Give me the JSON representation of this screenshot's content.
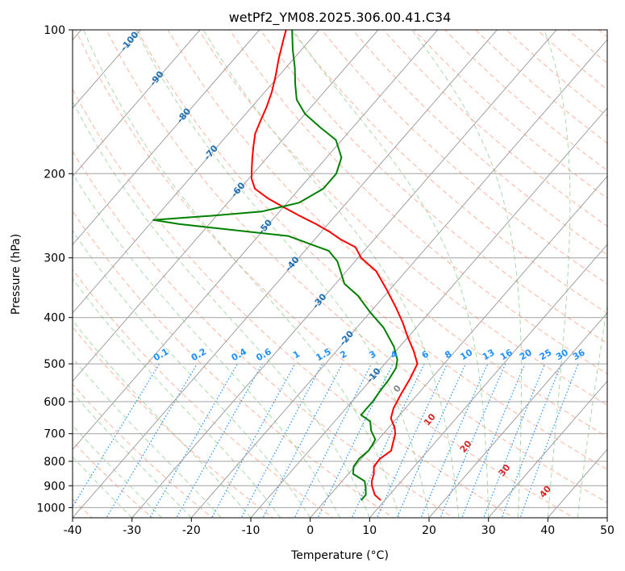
{
  "chart_data": {
    "type": "line",
    "subtype": "skew-t log-p",
    "title": "wetPf2_YM08.2025.306.00.41.C34",
    "xlabel": "Temperature (°C)",
    "ylabel": "Pressure (hPa)",
    "xlim": [
      -40,
      50
    ],
    "ylim": [
      1050,
      100
    ],
    "x_ticks": [
      -40,
      -30,
      -20,
      -10,
      0,
      10,
      20,
      30,
      40,
      50
    ],
    "y_ticks": [
      1000,
      900,
      800,
      700,
      600,
      500,
      400,
      300,
      200,
      100
    ],
    "series": [
      {
        "name": "Temperature",
        "color": "#ff0000",
        "points": [
          [
            9.3,
            965
          ],
          [
            7.5,
            940
          ],
          [
            5.7,
            900
          ],
          [
            5.0,
            880
          ],
          [
            4.3,
            850
          ],
          [
            3.2,
            820
          ],
          [
            3.1,
            790
          ],
          [
            3.8,
            760
          ],
          [
            3.2,
            740
          ],
          [
            2.0,
            700
          ],
          [
            1.0,
            680
          ],
          [
            -1.0,
            650
          ],
          [
            -2.0,
            620
          ],
          [
            -2.8,
            580
          ],
          [
            -3.5,
            540
          ],
          [
            -4.5,
            500
          ],
          [
            -7.0,
            470
          ],
          [
            -10.0,
            440
          ],
          [
            -13.0,
            410
          ],
          [
            -16.5,
            380
          ],
          [
            -20.5,
            350
          ],
          [
            -25.0,
            320
          ],
          [
            -29.5,
            300
          ],
          [
            -32.0,
            285
          ],
          [
            -35.5,
            275
          ],
          [
            -38.5,
            265
          ],
          [
            -42.0,
            255
          ],
          [
            -46.0,
            245
          ],
          [
            -50.0,
            235
          ],
          [
            -54.0,
            225
          ],
          [
            -57.5,
            215
          ],
          [
            -59.5,
            205
          ],
          [
            -61.0,
            195
          ],
          [
            -62.5,
            185
          ],
          [
            -64.0,
            175
          ],
          [
            -65.5,
            165
          ],
          [
            -66.5,
            155
          ],
          [
            -67.5,
            145
          ],
          [
            -68.8,
            135
          ],
          [
            -70.5,
            125
          ],
          [
            -72.5,
            115
          ],
          [
            -74.5,
            105
          ],
          [
            -75.5,
            100
          ]
        ]
      },
      {
        "name": "Dewpoint",
        "color": "#008000",
        "points": [
          [
            6.0,
            965
          ],
          [
            6.0,
            940
          ],
          [
            5.0,
            910
          ],
          [
            3.8,
            880
          ],
          [
            0.8,
            850
          ],
          [
            -0.2,
            820
          ],
          [
            -0.4,
            790
          ],
          [
            0.0,
            760
          ],
          [
            -0.2,
            740
          ],
          [
            -0.5,
            720
          ],
          [
            -2.5,
            690
          ],
          [
            -4.0,
            660
          ],
          [
            -6.5,
            640
          ],
          [
            -6.5,
            620
          ],
          [
            -6.5,
            600
          ],
          [
            -6.8,
            570
          ],
          [
            -7.0,
            540
          ],
          [
            -7.5,
            510
          ],
          [
            -8.5,
            490
          ],
          [
            -11.0,
            460
          ],
          [
            -15.5,
            420
          ],
          [
            -20.0,
            390
          ],
          [
            -24.5,
            360
          ],
          [
            -28.5,
            340
          ],
          [
            -31.0,
            320
          ],
          [
            -33.0,
            305
          ],
          [
            -36.0,
            290
          ],
          [
            -45.0,
            270
          ],
          [
            -65.0,
            255
          ],
          [
            -70.0,
            250
          ],
          [
            -61.0,
            245
          ],
          [
            -53.0,
            240
          ],
          [
            -48.0,
            230
          ],
          [
            -46.0,
            215
          ],
          [
            -46.0,
            200
          ],
          [
            -47.5,
            185
          ],
          [
            -51.0,
            170
          ],
          [
            -55.5,
            160
          ],
          [
            -60.0,
            150
          ],
          [
            -63.5,
            140
          ],
          [
            -66.0,
            130
          ],
          [
            -68.5,
            120
          ],
          [
            -71.5,
            110
          ],
          [
            -74.5,
            100
          ]
        ]
      }
    ],
    "overlays": {
      "dry_adiabats": "dashed light red (#ff9a7a)",
      "moist_adiabats": "dashed light green (#8fce8f)",
      "mixing_ratio_lines": "dotted blue (#1e90ff)",
      "isotherms": "skewed gray lines every 10 °C"
    },
    "isotherm_labels": [
      {
        "text": "-100",
        "T": -100
      },
      {
        "text": "-90",
        "T": -90
      },
      {
        "text": "-80",
        "T": -80
      },
      {
        "text": "-70",
        "T": -70
      },
      {
        "text": "-60",
        "T": -60
      },
      {
        "text": "-50",
        "T": -50
      },
      {
        "text": "-40",
        "T": -40
      },
      {
        "text": "-30",
        "T": -30
      },
      {
        "text": "-20",
        "T": -20
      },
      {
        "text": "-10",
        "T": -10
      }
    ],
    "mixing_ratio_labels": [
      "0.1",
      "0.2",
      "0.4",
      "0.6",
      "1",
      "1.5",
      "2",
      "3",
      "4",
      "6",
      "8",
      "10",
      "13",
      "16",
      "20",
      "25",
      "30",
      "36"
    ],
    "mixing_ratio_values": [
      0.1,
      0.2,
      0.4,
      0.6,
      1,
      1.5,
      2,
      3,
      4,
      6,
      8,
      10,
      13,
      16,
      20,
      25,
      30,
      36
    ],
    "isotherm_marker_labels": [
      {
        "text": "0",
        "T": 0,
        "color": "#888888"
      },
      {
        "text": "10",
        "T": 10,
        "color": "#d62728"
      },
      {
        "text": "20",
        "T": 20,
        "color": "#d62728"
      },
      {
        "text": "30",
        "T": 30,
        "color": "#d62728"
      },
      {
        "text": "40",
        "T": 40,
        "color": "#d62728"
      }
    ]
  }
}
